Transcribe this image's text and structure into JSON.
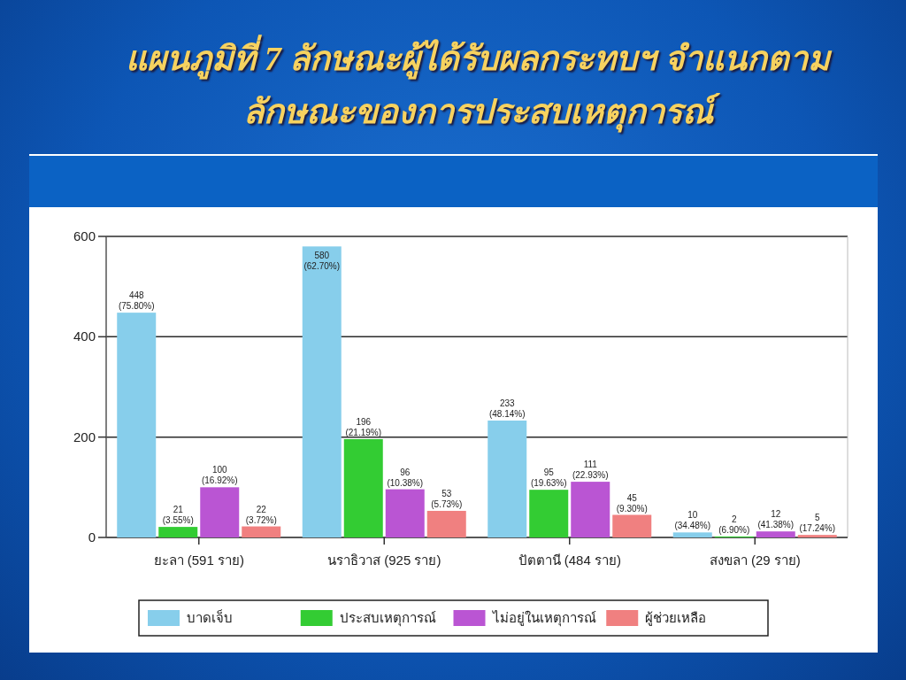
{
  "chart_data": {
    "type": "bar",
    "title": "แผนภูมิที่ 7 ลักษณะผู้ได้รับผลกระทบฯ จำแนกตาม\nลักษณะของการประสบเหตุการณ์",
    "categories": [
      "ยะลา (591 ราย)",
      "นราธิวาส (925 ราย)",
      "ปัตตานี (484 ราย)",
      "สงขลา (29 ราย)"
    ],
    "series": [
      {
        "name": "บาดเจ็บ",
        "color": "#87ceeb",
        "values": [
          448,
          580,
          233,
          10
        ],
        "value_labels": [
          "448(75.80%)",
          "580(62.70%)",
          "233(48.14%)",
          "10(34.48%)"
        ]
      },
      {
        "name": "ประสบเหตุการณ์",
        "color": "#33cc33",
        "values": [
          21,
          196,
          95,
          2
        ],
        "value_labels": [
          "21(3.55%)",
          "196(21.19%)",
          "95(19.63%)",
          "2(6.90%)"
        ]
      },
      {
        "name": "ไม่อยู่ในเหตุการณ์",
        "color": "#ba55d3",
        "values": [
          100,
          96,
          111,
          12
        ],
        "value_labels": [
          "100(16.92%)",
          "96(10.38%)",
          "111(22.93%)",
          "12(41.38%)"
        ]
      },
      {
        "name": "ผู้ช่วยเหลือ",
        "color": "#f08080",
        "values": [
          22,
          53,
          45,
          5
        ],
        "value_labels": [
          "22(3.72%)",
          "53(5.73%)",
          "45(9.30%)",
          "5(17.24%)"
        ]
      }
    ],
    "ylim": [
      0,
      600
    ],
    "yticks": [
      0,
      200,
      400,
      600
    ],
    "grid": "y",
    "legend": "bottom"
  }
}
